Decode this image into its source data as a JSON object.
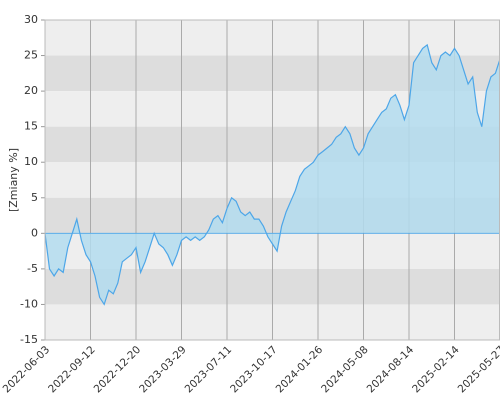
{
  "chart_data": {
    "type": "area",
    "ylabel": "[Zmiany %]",
    "categories": [
      "2022-06-03",
      null,
      null,
      null,
      null,
      null,
      null,
      null,
      null,
      null,
      "2022-09-12",
      null,
      null,
      null,
      null,
      null,
      null,
      null,
      null,
      null,
      "2022-12-20",
      null,
      null,
      null,
      null,
      null,
      null,
      null,
      null,
      null,
      "2023-03-29",
      null,
      null,
      null,
      null,
      null,
      null,
      null,
      null,
      null,
      "2023-07-11",
      null,
      null,
      null,
      null,
      null,
      null,
      null,
      null,
      null,
      "2023-10-17",
      null,
      null,
      null,
      null,
      null,
      null,
      null,
      null,
      null,
      "2024-01-26",
      null,
      null,
      null,
      null,
      null,
      null,
      null,
      null,
      null,
      "2024-05-08",
      null,
      null,
      null,
      null,
      null,
      null,
      null,
      null,
      null,
      "2024-08-14",
      null,
      null,
      null,
      null,
      null,
      null,
      null,
      null,
      null,
      "2025-02-14",
      null,
      null,
      null,
      null,
      null,
      null,
      null,
      null,
      null,
      "2025-05-27"
    ],
    "series": [
      {
        "color": "#4da6e8",
        "area_color": "#b3dcef",
        "values": [
          0,
          -5,
          -6,
          -5,
          -5.5,
          -2,
          0,
          2,
          -1,
          -3,
          -4,
          -6,
          -9,
          -10,
          -8,
          -8.5,
          -7,
          -4,
          -3.5,
          -3,
          -2,
          -5.5,
          -4,
          -2,
          0,
          -1.5,
          -2,
          -3,
          -4.5,
          -3,
          -1,
          -0.5,
          -1,
          -0.5,
          -1,
          -0.5,
          0.5,
          2,
          2.5,
          1.5,
          3.5,
          5,
          4.5,
          3,
          2.5,
          3,
          2,
          2,
          1,
          -0.5,
          -1.5,
          -2.5,
          1,
          3,
          4.5,
          6,
          8,
          9,
          9.5,
          10,
          11,
          11.5,
          12,
          12.5,
          13.5,
          14,
          15,
          14,
          12,
          11,
          12,
          14,
          15,
          16,
          17,
          17.5,
          19,
          19.5,
          18,
          16,
          18,
          24,
          25,
          26,
          26.5,
          24,
          23,
          25,
          25.5,
          25,
          26,
          25,
          23,
          21,
          22,
          17,
          15,
          20,
          22,
          22.5,
          24.5
        ]
      }
    ],
    "ylim": [
      -15,
      30
    ],
    "yticks": [
      -15,
      -10,
      -5,
      0,
      5,
      10,
      15,
      20,
      25,
      30
    ],
    "band_colors": [
      "#eeeeee",
      "#dddddd"
    ],
    "grid": true
  }
}
